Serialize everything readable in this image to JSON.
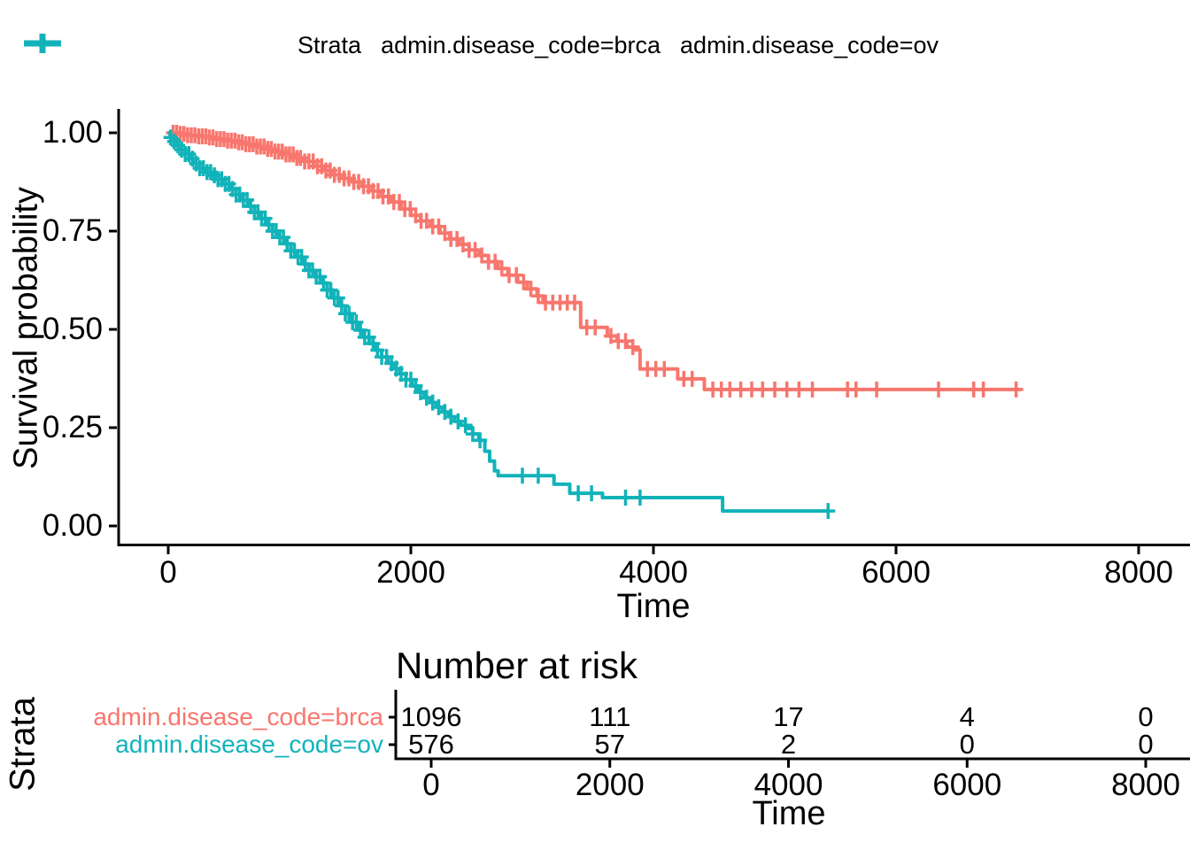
{
  "colors": {
    "brca": "#F8766D",
    "ov": "#11B3B9",
    "axis": "#000000"
  },
  "legend": {
    "title": "Strata",
    "items": [
      {
        "label": "admin.disease_code=brca",
        "color": "#F8766D"
      },
      {
        "label": "admin.disease_code=ov",
        "color": "#11B3B9"
      }
    ]
  },
  "main_plot": {
    "y_title": "Survival probability",
    "x_title": "Time",
    "y_ticks": [
      {
        "value": 1.0,
        "label": "1.00"
      },
      {
        "value": 0.75,
        "label": "0.75"
      },
      {
        "value": 0.5,
        "label": "0.50"
      },
      {
        "value": 0.25,
        "label": "0.25"
      },
      {
        "value": 0.0,
        "label": "0.00"
      }
    ],
    "x_ticks": [
      {
        "value": 0,
        "label": "0"
      },
      {
        "value": 2000,
        "label": "2000"
      },
      {
        "value": 4000,
        "label": "4000"
      },
      {
        "value": 6000,
        "label": "6000"
      },
      {
        "value": 8000,
        "label": "8000"
      }
    ]
  },
  "risk_table": {
    "title": "Number at risk",
    "y_title": "Strata",
    "x_title": "Time",
    "x_ticks": [
      {
        "value": 0,
        "label": "0"
      },
      {
        "value": 2000,
        "label": "2000"
      },
      {
        "value": 4000,
        "label": "4000"
      },
      {
        "value": 6000,
        "label": "6000"
      },
      {
        "value": 8000,
        "label": "8000"
      }
    ],
    "rows": [
      {
        "label": "admin.disease_code=brca",
        "color": "#F8766D",
        "values": [
          "1096",
          "111",
          "17",
          "4",
          "0"
        ]
      },
      {
        "label": "admin.disease_code=ov",
        "color": "#11B3B9",
        "values": [
          "576",
          "57",
          "2",
          "0",
          "0"
        ]
      }
    ]
  },
  "chart_data": {
    "type": "line",
    "subtype": "kaplan-meier-step",
    "title": "",
    "xlabel": "Time",
    "ylabel": "Survival probability",
    "xlim": [
      0,
      8000
    ],
    "ylim": [
      0,
      1
    ],
    "grid": false,
    "legend_position": "top",
    "series": [
      {
        "name": "admin.disease_code=brca",
        "color": "#F8766D",
        "points": [
          [
            0,
            1.0
          ],
          [
            80,
            0.997
          ],
          [
            160,
            0.994
          ],
          [
            240,
            0.991
          ],
          [
            320,
            0.988
          ],
          [
            400,
            0.984
          ],
          [
            480,
            0.98
          ],
          [
            560,
            0.976
          ],
          [
            640,
            0.971
          ],
          [
            720,
            0.965
          ],
          [
            800,
            0.959
          ],
          [
            880,
            0.952
          ],
          [
            960,
            0.945
          ],
          [
            1040,
            0.936
          ],
          [
            1120,
            0.927
          ],
          [
            1200,
            0.915
          ],
          [
            1280,
            0.904
          ],
          [
            1360,
            0.893
          ],
          [
            1440,
            0.884
          ],
          [
            1520,
            0.875
          ],
          [
            1600,
            0.864
          ],
          [
            1680,
            0.852
          ],
          [
            1760,
            0.838
          ],
          [
            1840,
            0.824
          ],
          [
            1920,
            0.806
          ],
          [
            2000,
            0.79
          ],
          [
            2080,
            0.776
          ],
          [
            2160,
            0.762
          ],
          [
            2240,
            0.745
          ],
          [
            2320,
            0.73
          ],
          [
            2400,
            0.716
          ],
          [
            2480,
            0.702
          ],
          [
            2560,
            0.688
          ],
          [
            2640,
            0.672
          ],
          [
            2720,
            0.655
          ],
          [
            2800,
            0.638
          ],
          [
            2880,
            0.62
          ],
          [
            2960,
            0.603
          ],
          [
            3040,
            0.585
          ],
          [
            3090,
            0.568
          ],
          [
            3390,
            0.568
          ],
          [
            3400,
            0.505
          ],
          [
            3600,
            0.505
          ],
          [
            3620,
            0.483
          ],
          [
            3700,
            0.47
          ],
          [
            3780,
            0.455
          ],
          [
            3850,
            0.448
          ],
          [
            3890,
            0.399
          ],
          [
            4180,
            0.399
          ],
          [
            4200,
            0.374
          ],
          [
            4400,
            0.374
          ],
          [
            4420,
            0.347
          ],
          [
            7030,
            0.347
          ]
        ],
        "censor_times": [
          40,
          70,
          100,
          130,
          160,
          190,
          220,
          250,
          280,
          310,
          340,
          370,
          400,
          430,
          460,
          490,
          520,
          550,
          580,
          610,
          640,
          670,
          700,
          730,
          760,
          790,
          820,
          850,
          880,
          910,
          940,
          970,
          1000,
          1030,
          1060,
          1090,
          1125,
          1160,
          1195,
          1230,
          1265,
          1300,
          1335,
          1370,
          1410,
          1450,
          1490,
          1530,
          1570,
          1610,
          1650,
          1690,
          1730,
          1770,
          1815,
          1860,
          1905,
          1950,
          1995,
          2040,
          2085,
          2130,
          2180,
          2230,
          2280,
          2330,
          2380,
          2430,
          2480,
          2530,
          2585,
          2640,
          2695,
          2750,
          2810,
          2870,
          2930,
          2990,
          3050,
          3110,
          3170,
          3230,
          3290,
          3350,
          3450,
          3520,
          3650,
          3710,
          3770,
          3830,
          3950,
          4020,
          4090,
          4250,
          4320,
          4490,
          4560,
          4630,
          4720,
          4810,
          4900,
          5000,
          5100,
          5200,
          5310,
          5600,
          5670,
          5840,
          6350,
          6640,
          6720,
          6990
        ]
      },
      {
        "name": "admin.disease_code=ov",
        "color": "#11B3B9",
        "points": [
          [
            0,
            1.0
          ],
          [
            15,
            0.988
          ],
          [
            30,
            0.978
          ],
          [
            60,
            0.968
          ],
          [
            100,
            0.957
          ],
          [
            140,
            0.946
          ],
          [
            180,
            0.934
          ],
          [
            220,
            0.922
          ],
          [
            260,
            0.91
          ],
          [
            310,
            0.9
          ],
          [
            360,
            0.892
          ],
          [
            410,
            0.882
          ],
          [
            460,
            0.87
          ],
          [
            510,
            0.857
          ],
          [
            560,
            0.843
          ],
          [
            610,
            0.829
          ],
          [
            660,
            0.813
          ],
          [
            710,
            0.798
          ],
          [
            760,
            0.782
          ],
          [
            810,
            0.766
          ],
          [
            860,
            0.75
          ],
          [
            910,
            0.734
          ],
          [
            960,
            0.718
          ],
          [
            1010,
            0.7
          ],
          [
            1060,
            0.684
          ],
          [
            1110,
            0.666
          ],
          [
            1160,
            0.65
          ],
          [
            1210,
            0.634
          ],
          [
            1260,
            0.618
          ],
          [
            1310,
            0.6
          ],
          [
            1360,
            0.58
          ],
          [
            1410,
            0.56
          ],
          [
            1460,
            0.54
          ],
          [
            1510,
            0.518
          ],
          [
            1560,
            0.498
          ],
          [
            1610,
            0.48
          ],
          [
            1660,
            0.464
          ],
          [
            1710,
            0.447
          ],
          [
            1760,
            0.43
          ],
          [
            1810,
            0.414
          ],
          [
            1860,
            0.4
          ],
          [
            1910,
            0.387
          ],
          [
            1960,
            0.372
          ],
          [
            2010,
            0.356
          ],
          [
            2060,
            0.34
          ],
          [
            2110,
            0.326
          ],
          [
            2160,
            0.314
          ],
          [
            2210,
            0.302
          ],
          [
            2260,
            0.29
          ],
          [
            2310,
            0.278
          ],
          [
            2360,
            0.266
          ],
          [
            2410,
            0.256
          ],
          [
            2460,
            0.248
          ],
          [
            2510,
            0.234
          ],
          [
            2560,
            0.218
          ],
          [
            2610,
            0.19
          ],
          [
            2650,
            0.165
          ],
          [
            2690,
            0.14
          ],
          [
            2720,
            0.128
          ],
          [
            3160,
            0.128
          ],
          [
            3180,
            0.106
          ],
          [
            3290,
            0.106
          ],
          [
            3310,
            0.083
          ],
          [
            3560,
            0.083
          ],
          [
            3580,
            0.072
          ],
          [
            4550,
            0.072
          ],
          [
            4570,
            0.038
          ],
          [
            5440,
            0.038
          ]
        ],
        "censor_times": [
          20,
          50,
          80,
          110,
          140,
          170,
          200,
          230,
          260,
          290,
          320,
          350,
          380,
          410,
          440,
          470,
          500,
          530,
          560,
          590,
          620,
          650,
          680,
          710,
          740,
          770,
          800,
          830,
          860,
          890,
          920,
          950,
          980,
          1010,
          1040,
          1070,
          1100,
          1130,
          1160,
          1190,
          1220,
          1250,
          1280,
          1310,
          1340,
          1370,
          1400,
          1430,
          1460,
          1490,
          1520,
          1550,
          1585,
          1620,
          1655,
          1690,
          1725,
          1760,
          1800,
          1840,
          1880,
          1920,
          1960,
          2000,
          2040,
          2080,
          2130,
          2180,
          2230,
          2280,
          2330,
          2390,
          2450,
          2510,
          2570,
          2920,
          3050,
          3380,
          3490,
          3770,
          3890,
          5440
        ]
      }
    ],
    "risk_table": {
      "title": "Number at risk",
      "times": [
        0,
        2000,
        4000,
        6000,
        8000
      ],
      "at_risk": {
        "admin.disease_code=brca": [
          1096,
          111,
          17,
          4,
          0
        ],
        "admin.disease_code=ov": [
          576,
          57,
          2,
          0,
          0
        ]
      }
    }
  }
}
